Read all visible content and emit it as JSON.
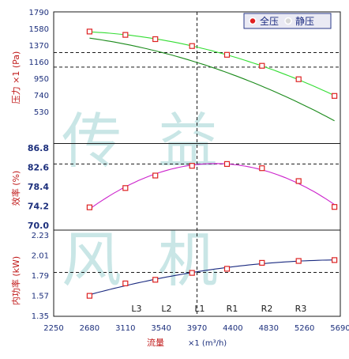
{
  "watermark": [
    "传",
    "益",
    "风",
    "机"
  ],
  "legend": {
    "items": [
      {
        "label": "全压",
        "color": "#e02020",
        "active": true
      },
      {
        "label": "静压",
        "color": "#c0c0c0",
        "active": false
      }
    ]
  },
  "zones": [
    "L3",
    "L2",
    "L1",
    "R1",
    "R2",
    "R3"
  ],
  "chart_data": {
    "type": "line",
    "x_axis": {
      "label": "流量",
      "unit": "×1 (m³/h)",
      "ticks": [
        "2250",
        "2680",
        "3110",
        "3540",
        "3970",
        "4400",
        "4830",
        "5260",
        "5690"
      ],
      "range": [
        2250,
        5690
      ]
    },
    "operating_point_x": 3970,
    "panels": [
      {
        "name": "pressure",
        "ylabel": "压力 ×1 (Pa)",
        "ticks": [
          "1790",
          "1580",
          "1370",
          "1160",
          "950",
          "740",
          "530"
        ],
        "range": [
          530,
          1790
        ],
        "hlines": [
          1387,
          1243
        ],
        "series": [
          {
            "name": "全压",
            "color": "#33dd33",
            "marker_color": "#dd2222",
            "x": [
              2680,
              3110,
              3470,
              3910,
              4330,
              4750,
              5190,
              5620
            ],
            "y": [
              1595,
              1562,
              1520,
              1452,
              1365,
              1256,
              1123,
              958
            ]
          },
          {
            "name": "静压",
            "color": "#1a8a1a",
            "x": [
              2680,
              3110,
              3540,
              3970,
              4400,
              4830,
              5260,
              5620
            ],
            "y": [
              1530,
              1470,
              1390,
              1290,
              1170,
              1025,
              860,
              715
            ]
          }
        ]
      },
      {
        "name": "efficiency",
        "ylabel": "效率 (%)",
        "ticks": [
          "86.8",
          "82.6",
          "78.4",
          "74.2",
          "70.0"
        ],
        "range": [
          70.0,
          86.8
        ],
        "hlines": [
          83.3
        ],
        "series": [
          {
            "name": "效率",
            "color": "#cc22cc",
            "marker_color": "#dd2222",
            "x": [
              2680,
              3110,
              3470,
              3910,
              4330,
              4750,
              5190,
              5620
            ],
            "y": [
              73.9,
              78.1,
              80.8,
              82.9,
              83.3,
              82.4,
              79.6,
              74.0
            ]
          }
        ]
      },
      {
        "name": "power",
        "ylabel": "内功率 (kW)",
        "ticks": [
          "2.23",
          "2.01",
          "1.79",
          "1.57",
          "1.35"
        ],
        "range": [
          1.35,
          2.23
        ],
        "hlines": [
          1.82
        ],
        "series": [
          {
            "name": "内功率",
            "color": "#1a2a80",
            "marker_color": "#dd2222",
            "x": [
              2680,
              3110,
              3470,
              3910,
              4330,
              4750,
              5190,
              5620
            ],
            "y": [
              1.565,
              1.7,
              1.74,
              1.815,
              1.86,
              1.925,
              1.945,
              1.955
            ]
          }
        ]
      }
    ]
  }
}
